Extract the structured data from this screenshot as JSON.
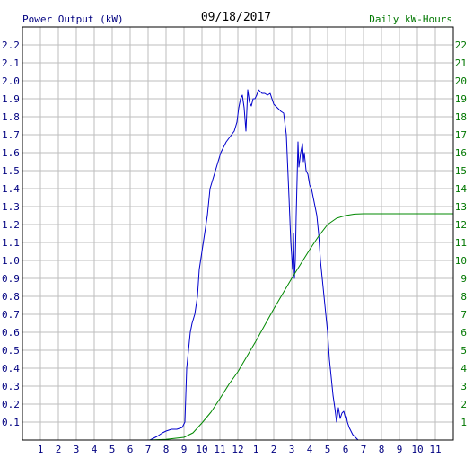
{
  "colors": {
    "power": "#0000cc",
    "energy": "#008800",
    "grid": "#bdbdbd",
    "frame": "#000000",
    "left_axis_text": "#000080",
    "right_axis_text": "#007700",
    "date_text": "#000000",
    "x_axis_text": "#000080"
  },
  "chart_data": {
    "type": "line",
    "title": "09/18/2017",
    "ylabel": "Power Output (kW)",
    "y2label": "Daily kW-Hours",
    "xlabel": "",
    "x_unit": "hour of day",
    "xlim": [
      0,
      24
    ],
    "ylim": [
      0,
      2.3
    ],
    "y2lim": [
      0,
      23
    ],
    "grid": true,
    "x_tick_labels": [
      "1",
      "2",
      "3",
      "4",
      "5",
      "6",
      "7",
      "8",
      "9",
      "10",
      "11",
      "12",
      "1",
      "2",
      "3",
      "4",
      "5",
      "6",
      "7",
      "8",
      "9",
      "10",
      "11"
    ],
    "y_tick_labels": [
      "0.1",
      "0.2",
      "0.3",
      "0.4",
      "0.5",
      "0.6",
      "0.7",
      "0.8",
      "0.9",
      "1.0",
      "1.1",
      "1.2",
      "1.3",
      "1.4",
      "1.5",
      "1.6",
      "1.7",
      "1.8",
      "1.9",
      "2.0",
      "2.1",
      "2.2"
    ],
    "y2_tick_labels": [
      "1",
      "2",
      "3",
      "4",
      "5",
      "6",
      "7",
      "8",
      "9",
      "10",
      "11",
      "12",
      "13",
      "14",
      "15",
      "16",
      "17",
      "18",
      "19",
      "20",
      "21",
      "22"
    ],
    "series": [
      {
        "name": "Power Output (kW)",
        "axis": "left",
        "x": [
          7.1,
          7.5,
          7.8,
          8.0,
          8.3,
          8.6,
          8.9,
          9.05,
          9.15,
          9.25,
          9.35,
          9.45,
          9.6,
          9.75,
          9.85,
          10.0,
          10.15,
          10.3,
          10.45,
          10.6,
          10.75,
          10.9,
          11.05,
          11.2,
          11.35,
          11.5,
          11.65,
          11.8,
          11.95,
          12.05,
          12.15,
          12.25,
          12.35,
          12.45,
          12.55,
          12.65,
          12.75,
          12.85,
          12.95,
          13.05,
          13.15,
          13.25,
          13.35,
          13.5,
          13.65,
          13.8,
          14.0,
          14.2,
          14.4,
          14.55,
          14.7,
          14.85,
          14.95,
          15.05,
          15.1,
          15.15,
          15.2,
          15.25,
          15.3,
          15.35,
          15.4,
          15.5,
          15.6,
          15.65,
          15.7,
          15.8,
          15.9,
          16.0,
          16.1,
          16.2,
          16.3,
          16.4,
          16.5,
          16.6,
          16.7,
          16.8,
          16.9,
          17.0,
          17.1,
          17.2,
          17.3,
          17.4,
          17.5,
          17.6,
          17.7,
          17.8,
          17.9,
          18.0,
          18.05,
          18.1,
          18.2,
          18.3,
          18.4,
          18.5,
          18.6,
          18.7,
          18.8,
          18.9,
          19.0,
          19.1,
          19.2,
          19.3
        ],
        "y": [
          0.0,
          0.02,
          0.04,
          0.05,
          0.06,
          0.06,
          0.07,
          0.1,
          0.4,
          0.5,
          0.6,
          0.65,
          0.7,
          0.8,
          0.95,
          1.05,
          1.15,
          1.25,
          1.4,
          1.45,
          1.5,
          1.55,
          1.6,
          1.63,
          1.66,
          1.68,
          1.7,
          1.72,
          1.77,
          1.85,
          1.9,
          1.92,
          1.85,
          1.72,
          1.95,
          1.88,
          1.86,
          1.9,
          1.9,
          1.92,
          1.95,
          1.94,
          1.93,
          1.93,
          1.92,
          1.93,
          1.87,
          1.85,
          1.83,
          1.82,
          1.7,
          1.35,
          1.1,
          0.95,
          1.15,
          0.9,
          1.0,
          1.25,
          1.45,
          1.66,
          1.52,
          1.6,
          1.65,
          1.55,
          1.6,
          1.5,
          1.48,
          1.42,
          1.4,
          1.35,
          1.3,
          1.25,
          1.15,
          1.0,
          0.9,
          0.8,
          0.7,
          0.6,
          0.45,
          0.35,
          0.25,
          0.18,
          0.1,
          0.18,
          0.12,
          0.15,
          0.16,
          0.12,
          0.13,
          0.1,
          0.07,
          0.05,
          0.03,
          0.02,
          0.01,
          0.0,
          0.0,
          0.0,
          0.0,
          0.0,
          0.0,
          0.0
        ]
      },
      {
        "name": "Daily kW-Hours",
        "axis": "right",
        "x": [
          0,
          7,
          8,
          9,
          9.5,
          10,
          10.5,
          11,
          11.5,
          12,
          12.5,
          13,
          13.5,
          14,
          14.5,
          15,
          15.5,
          16,
          16.5,
          17,
          17.5,
          18,
          18.5,
          19,
          20,
          21,
          22,
          23,
          24
        ],
        "y": [
          0,
          0,
          0.04,
          0.15,
          0.4,
          0.95,
          1.55,
          2.3,
          3.1,
          3.8,
          4.65,
          5.5,
          6.4,
          7.3,
          8.15,
          9.0,
          9.8,
          10.6,
          11.35,
          12.0,
          12.35,
          12.5,
          12.58,
          12.6,
          12.6,
          12.6,
          12.6,
          12.6,
          12.6
        ]
      }
    ]
  }
}
